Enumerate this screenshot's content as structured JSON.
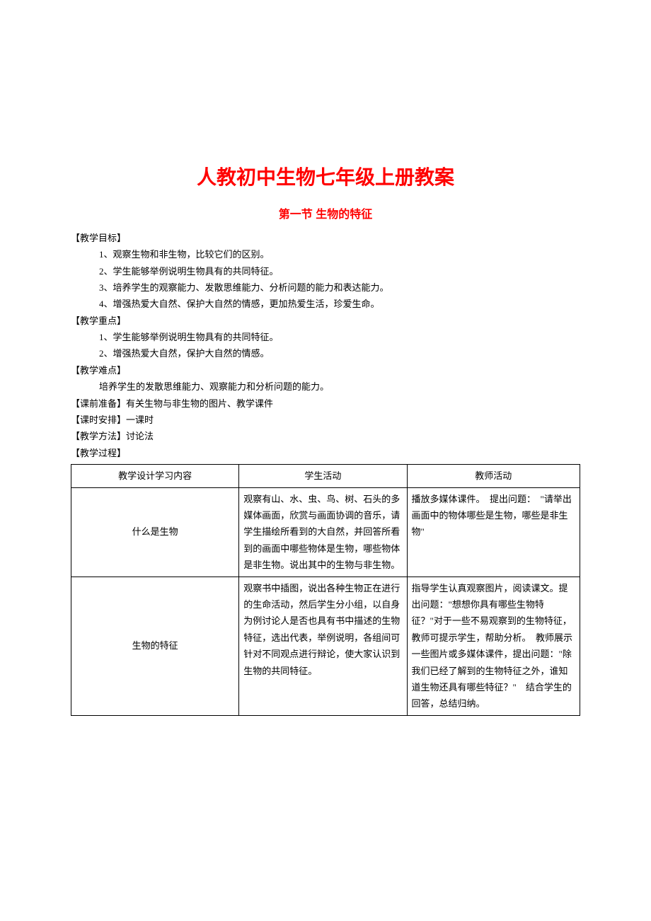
{
  "title": "人教初中生物七年级上册教案",
  "subtitle": "第一节 生物的特征",
  "sections": {
    "goals_label": "【教学目标】",
    "goals": [
      "1、观察生物和非生物，比较它们的区别。",
      "2、学生能够举例说明生物具有的共同特征。",
      "3、培养学生的观察能力、发散思维能力、分析问题的能力和表达能力。",
      "4、增强热爱大自然、保护大自然的情感，更加热爱生活，珍爱生命。"
    ],
    "keypoints_label": "【教学重点】",
    "keypoints": [
      "1、学生能够举例说明生物具有的共同特征。",
      "2、增强热爱大自然，保护大自然的情感。"
    ],
    "difficulty_label": "【教学难点】",
    "difficulty": "培养学生的发散思维能力、观察能力和分析问题的能力。",
    "prep_label": "【课前准备】有关生物与非生物的图片、教学课件",
    "schedule_label": "【课时安排】一课时",
    "method_label": "【教学方法】讨论法",
    "process_label": "【教学过程】"
  },
  "table": {
    "headers": [
      "教学设计学习内容",
      "学生活动",
      "教师活动"
    ],
    "rows": [
      {
        "topic": "什么是生物",
        "student": "观察有山、水、虫、鸟、树、石头的多媒体画面，欣赏与画面协调的音乐，请学生描绘所看到的大自然，并回答所看到的画面中哪些物体是生物，哪些物体是非生物。说出其中的生物与非生物。",
        "teacher": "播放多媒体课件。　提出问题：　\"请举出画面中的物体哪些是生物，哪些是非生物\""
      },
      {
        "topic": "生物的特征",
        "student": "观察书中插图，说出各种生物正在进行的生命活动，然后学生分小组，以自身为例讨论人是否也具有书中描述的生物特征，选出代表，举例说明，各组间可针对不同观点进行辩论，使大家认识到生物的共同特征。",
        "teacher": "指导学生认真观察图片，阅读课文。提出问题：\"想想你具有哪些生物特征？\"对于一些不易观察到的生物特征，教师可提示学生，帮助分析。　教师展示一些图片或多媒体课件，提出问题：\"除我们已经了解到的生物特征之外，谁知道生物还具有哪些特征？\"　结合学生的回答，总结归纳。"
      }
    ]
  },
  "styles": {
    "title_color": "#ff0000",
    "title_fontsize": 28,
    "subtitle_fontsize": 16,
    "body_fontsize": 13,
    "text_color": "#000000",
    "background_color": "#ffffff",
    "border_color": "#000000",
    "line_height": 1.8
  }
}
